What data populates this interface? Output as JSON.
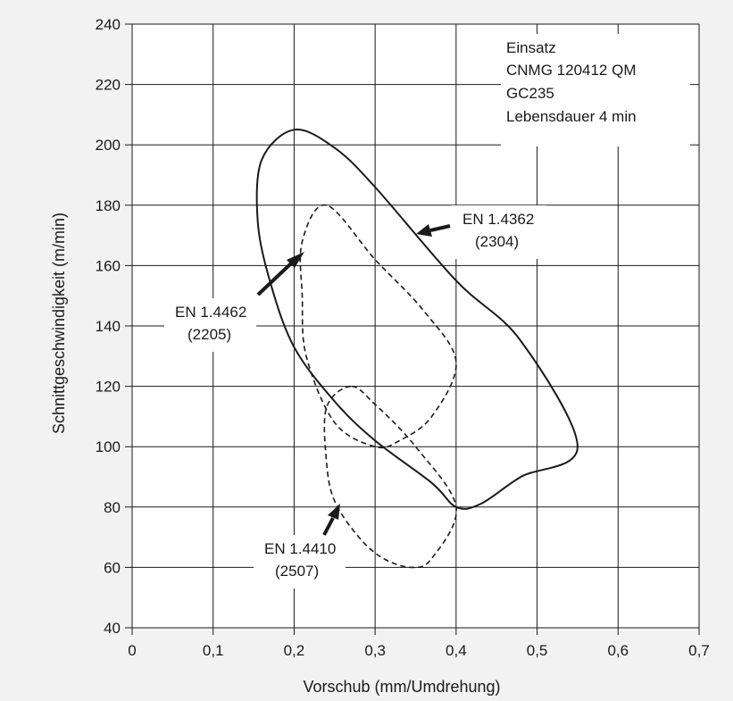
{
  "chart_data": {
    "type": "line",
    "xlabel": "Vorschub (mm/Umdrehung)",
    "ylabel": "Schnittgeschwindigkeit (m/min)",
    "xlim": [
      0,
      0.7
    ],
    "ylim": [
      40,
      240
    ],
    "x_ticks": [
      "0",
      "0,1",
      "0,2",
      "0,3",
      "0,4",
      "0,5",
      "0,6",
      "0,7"
    ],
    "y_ticks": [
      "40",
      "60",
      "80",
      "100",
      "120",
      "140",
      "160",
      "180",
      "200",
      "220",
      "240"
    ],
    "grid": true,
    "info_box": [
      "Einsatz",
      "CNMG 120412 QM",
      "GC235",
      "Lebensdauer 4 min"
    ],
    "series": [
      {
        "name": "EN 1.4362 (2304)",
        "style": "solid",
        "points": [
          [
            0.2,
            205
          ],
          [
            0.16,
            195
          ],
          [
            0.155,
            175
          ],
          [
            0.17,
            155
          ],
          [
            0.2,
            133
          ],
          [
            0.25,
            115
          ],
          [
            0.3,
            102
          ],
          [
            0.37,
            88
          ],
          [
            0.4,
            80
          ],
          [
            0.43,
            81
          ],
          [
            0.48,
            90
          ],
          [
            0.55,
            100
          ],
          [
            0.48,
            135
          ],
          [
            0.4,
            155
          ],
          [
            0.3,
            186
          ],
          [
            0.25,
            199
          ],
          [
            0.2,
            205
          ]
        ]
      },
      {
        "name": "EN 1.4462 (2205)",
        "style": "dashed",
        "points": [
          [
            0.24,
            180
          ],
          [
            0.21,
            168
          ],
          [
            0.21,
            150
          ],
          [
            0.215,
            130
          ],
          [
            0.25,
            108
          ],
          [
            0.3,
            100
          ],
          [
            0.33,
            102
          ],
          [
            0.37,
            110
          ],
          [
            0.4,
            128
          ],
          [
            0.36,
            145
          ],
          [
            0.3,
            162
          ],
          [
            0.24,
            180
          ]
        ]
      },
      {
        "name": "EN 1.4410 (2507)",
        "style": "dashed",
        "points": [
          [
            0.27,
            120
          ],
          [
            0.24,
            113
          ],
          [
            0.24,
            95
          ],
          [
            0.25,
            82
          ],
          [
            0.28,
            70
          ],
          [
            0.31,
            63
          ],
          [
            0.345,
            60
          ],
          [
            0.37,
            63
          ],
          [
            0.4,
            80
          ],
          [
            0.35,
            100
          ],
          [
            0.3,
            114
          ],
          [
            0.27,
            120
          ]
        ]
      }
    ],
    "annotations": [
      {
        "label": [
          "EN 1.4362",
          "(2304)"
        ],
        "series": "EN 1.4362 (2304)"
      },
      {
        "label": [
          "EN 1.4462",
          "(2205)"
        ],
        "series": "EN 1.4462 (2205)"
      },
      {
        "label": [
          "EN 1.4410",
          "(2507)"
        ],
        "series": "EN 1.4410 (2507)"
      }
    ]
  }
}
